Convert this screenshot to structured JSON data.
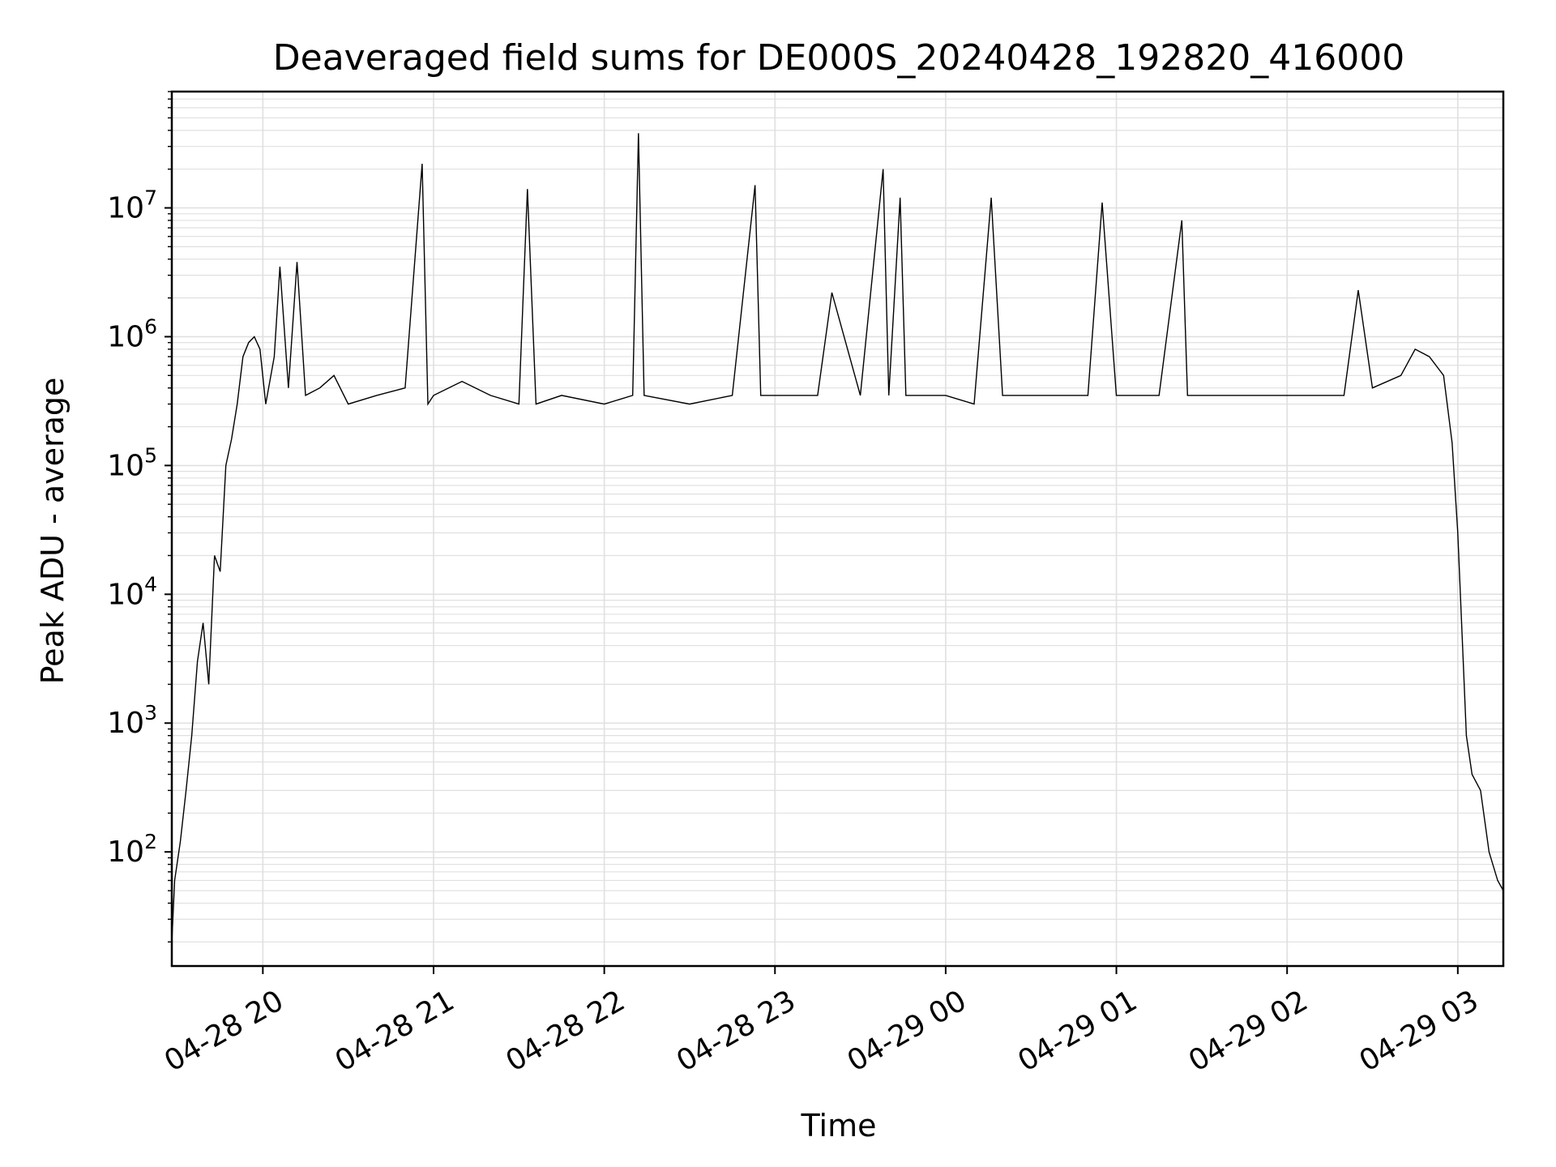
{
  "chart_data": {
    "type": "line",
    "title": "Deaveraged field sums for DE000S_20240428_192820_416000",
    "xlabel": "Time",
    "ylabel": "Peak ADU - average",
    "yscale": "log",
    "xlim": [
      "2024-04-28 19:28",
      "2024-04-29 03:16"
    ],
    "ylim": [
      13,
      80000000
    ],
    "grid": true,
    "line_color": "#000000",
    "grid_color": "#e0e0e0",
    "x_ticks": [
      {
        "value": "2024-04-28 20:00",
        "label": "04-28 20"
      },
      {
        "value": "2024-04-28 21:00",
        "label": "04-28 21"
      },
      {
        "value": "2024-04-28 22:00",
        "label": "04-28 22"
      },
      {
        "value": "2024-04-28 23:00",
        "label": "04-28 23"
      },
      {
        "value": "2024-04-29 00:00",
        "label": "04-29 00"
      },
      {
        "value": "2024-04-29 01:00",
        "label": "04-29 01"
      },
      {
        "value": "2024-04-29 02:00",
        "label": "04-29 02"
      },
      {
        "value": "2024-04-29 03:00",
        "label": "04-29 03"
      }
    ],
    "y_ticks": [
      {
        "value": 100,
        "base": "10",
        "exp": "2"
      },
      {
        "value": 1000,
        "base": "10",
        "exp": "3"
      },
      {
        "value": 10000,
        "base": "10",
        "exp": "4"
      },
      {
        "value": 100000,
        "base": "10",
        "exp": "5"
      },
      {
        "value": 1000000,
        "base": "10",
        "exp": "6"
      },
      {
        "value": 10000000,
        "base": "10",
        "exp": "7"
      }
    ],
    "series": [
      {
        "x": [
          "2024-04-28 19:28",
          "2024-04-28 19:29",
          "2024-04-28 19:31",
          "2024-04-28 19:33",
          "2024-04-28 19:35",
          "2024-04-28 19:37",
          "2024-04-28 19:39",
          "2024-04-28 19:41",
          "2024-04-28 19:43",
          "2024-04-28 19:45",
          "2024-04-28 19:47",
          "2024-04-28 19:49",
          "2024-04-28 19:51",
          "2024-04-28 19:53",
          "2024-04-28 19:55",
          "2024-04-28 19:57",
          "2024-04-28 19:59",
          "2024-04-28 20:01",
          "2024-04-28 20:04",
          "2024-04-28 20:06",
          "2024-04-28 20:09",
          "2024-04-28 20:12",
          "2024-04-28 20:15",
          "2024-04-28 20:20",
          "2024-04-28 20:25",
          "2024-04-28 20:30",
          "2024-04-28 20:40",
          "2024-04-28 20:50",
          "2024-04-28 20:56",
          "2024-04-28 20:58",
          "2024-04-28 21:00",
          "2024-04-28 21:10",
          "2024-04-28 21:20",
          "2024-04-28 21:30",
          "2024-04-28 21:33",
          "2024-04-28 21:36",
          "2024-04-28 21:45",
          "2024-04-28 22:00",
          "2024-04-28 22:10",
          "2024-04-28 22:12",
          "2024-04-28 22:14",
          "2024-04-28 22:30",
          "2024-04-28 22:45",
          "2024-04-28 22:53",
          "2024-04-28 22:55",
          "2024-04-28 23:00",
          "2024-04-28 23:15",
          "2024-04-28 23:20",
          "2024-04-28 23:30",
          "2024-04-28 23:38",
          "2024-04-28 23:40",
          "2024-04-28 23:44",
          "2024-04-28 23:46",
          "2024-04-28 23:50",
          "2024-04-29 00:00",
          "2024-04-29 00:10",
          "2024-04-29 00:16",
          "2024-04-29 00:20",
          "2024-04-29 00:30",
          "2024-04-29 00:45",
          "2024-04-29 00:50",
          "2024-04-29 00:55",
          "2024-04-29 01:00",
          "2024-04-29 01:15",
          "2024-04-29 01:23",
          "2024-04-29 01:25",
          "2024-04-29 01:40",
          "2024-04-29 02:00",
          "2024-04-29 02:20",
          "2024-04-29 02:25",
          "2024-04-29 02:30",
          "2024-04-29 02:40",
          "2024-04-29 02:45",
          "2024-04-29 02:50",
          "2024-04-29 02:55",
          "2024-04-29 02:58",
          "2024-04-29 03:00",
          "2024-04-29 03:03",
          "2024-04-29 03:05",
          "2024-04-29 03:08",
          "2024-04-29 03:11",
          "2024-04-29 03:14",
          "2024-04-29 03:16"
        ],
        "y": [
          20,
          60,
          120,
          300,
          800,
          3000,
          6000,
          2000,
          20000,
          15000,
          100000,
          160000,
          300000,
          700000,
          900000,
          1000000,
          800000,
          300000,
          700000,
          3500000,
          400000,
          3800000,
          350000,
          400000,
          500000,
          300000,
          350000,
          400000,
          22000000,
          300000,
          350000,
          450000,
          350000,
          300000,
          14000000,
          300000,
          350000,
          300000,
          350000,
          38000000,
          350000,
          300000,
          350000,
          15000000,
          350000,
          350000,
          350000,
          2200000,
          350000,
          20000000,
          350000,
          12000000,
          350000,
          350000,
          350000,
          300000,
          12000000,
          350000,
          350000,
          350000,
          350000,
          11000000,
          350000,
          350000,
          8000000,
          350000,
          350000,
          350000,
          350000,
          2300000,
          400000,
          500000,
          800000,
          700000,
          500000,
          150000,
          30000,
          800,
          400,
          300,
          100,
          60,
          50
        ]
      }
    ]
  }
}
